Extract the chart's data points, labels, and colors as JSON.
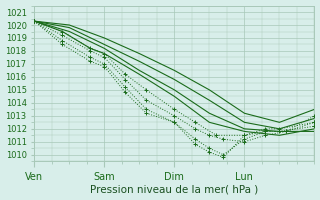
{
  "title": "Pression niveau de la mer( hPa )",
  "ylabel_values": [
    1010,
    1011,
    1012,
    1013,
    1014,
    1015,
    1016,
    1017,
    1018,
    1019,
    1020,
    1021
  ],
  "xtick_positions": [
    0,
    1,
    2,
    3
  ],
  "xtick_labels": [
    "Ven",
    "Sam",
    "Dim",
    "Lun"
  ],
  "ylim": [
    1009.5,
    1021.5
  ],
  "xlim": [
    0,
    4.0
  ],
  "bg_color": "#d8eeea",
  "grid_color": "#a8c8b8",
  "line_color": "#1a6b1a",
  "series": [
    {
      "x": [
        0,
        0.4,
        0.8,
        1.0,
        1.3,
        1.6,
        2.0,
        2.3,
        2.6,
        3.0,
        3.3,
        3.6,
        4.0
      ],
      "y": [
        1020.3,
        1019.5,
        1018.2,
        1017.8,
        1016.2,
        1015.0,
        1013.5,
        1012.5,
        1011.5,
        1011.5,
        1011.8,
        1011.8,
        1013.0
      ],
      "style": "dotted"
    },
    {
      "x": [
        0,
        0.4,
        0.8,
        1.0,
        1.3,
        1.6,
        2.0,
        2.3,
        2.5,
        2.7,
        3.0,
        3.3,
        3.6,
        4.0
      ],
      "y": [
        1020.3,
        1019.2,
        1018.0,
        1017.5,
        1015.8,
        1014.2,
        1013.0,
        1012.0,
        1011.5,
        1011.2,
        1011.0,
        1011.5,
        1011.8,
        1012.5
      ],
      "style": "dotted"
    },
    {
      "x": [
        0,
        0.4,
        0.8,
        1.0,
        1.3,
        1.6,
        2.0,
        2.3,
        2.5,
        2.7,
        3.0,
        3.3,
        3.5,
        4.0
      ],
      "y": [
        1020.3,
        1018.8,
        1017.5,
        1017.0,
        1015.2,
        1013.5,
        1012.5,
        1011.2,
        1010.5,
        1010.0,
        1011.2,
        1011.8,
        1011.8,
        1012.2
      ],
      "style": "dotted"
    },
    {
      "x": [
        0,
        0.4,
        0.8,
        1.0,
        1.3,
        1.6,
        2.0,
        2.3,
        2.5,
        2.7,
        3.0,
        3.3,
        3.5,
        4.0
      ],
      "y": [
        1020.3,
        1018.5,
        1017.2,
        1016.8,
        1014.8,
        1013.2,
        1012.5,
        1010.8,
        1010.2,
        1009.8,
        1011.5,
        1012.0,
        1012.0,
        1012.5
      ],
      "style": "dotted"
    },
    {
      "x": [
        0,
        0.4,
        0.8,
        1.0,
        1.5,
        2.0,
        2.5,
        3.0,
        3.5,
        4.0
      ],
      "y": [
        1020.3,
        1019.5,
        1018.2,
        1017.8,
        1016.2,
        1014.5,
        1012.5,
        1011.8,
        1011.5,
        1012.0
      ],
      "style": "solid"
    },
    {
      "x": [
        0,
        0.5,
        1.0,
        1.5,
        2.0,
        2.5,
        3.0,
        3.5,
        4.0
      ],
      "y": [
        1020.3,
        1019.5,
        1018.2,
        1016.5,
        1015.0,
        1013.2,
        1012.0,
        1011.8,
        1011.8
      ],
      "style": "solid"
    },
    {
      "x": [
        0,
        0.5,
        1.0,
        1.5,
        2.0,
        2.5,
        3.0,
        3.5,
        4.0
      ],
      "y": [
        1020.3,
        1019.8,
        1018.5,
        1017.2,
        1015.8,
        1014.2,
        1012.5,
        1012.0,
        1012.8
      ],
      "style": "solid"
    },
    {
      "x": [
        0,
        0.5,
        1.0,
        1.5,
        2.0,
        2.5,
        3.0,
        3.5,
        4.0
      ],
      "y": [
        1020.3,
        1020.0,
        1019.0,
        1017.8,
        1016.5,
        1015.0,
        1013.2,
        1012.5,
        1013.5
      ],
      "style": "solid"
    }
  ]
}
